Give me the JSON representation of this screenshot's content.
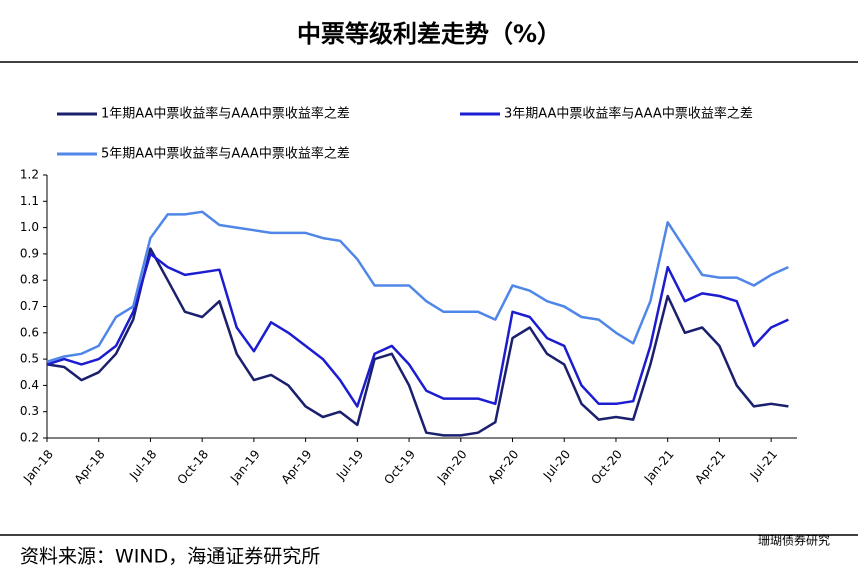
{
  "chart_data": {
    "type": "line",
    "title": "中票等级利差走势（%）",
    "source": "资料来源：WIND，海通证券研究所",
    "watermark": "珊瑚债券研究",
    "categories": [
      "Jan-18",
      null,
      null,
      "Apr-18",
      null,
      null,
      "Jul-18",
      null,
      null,
      "Oct-18",
      null,
      null,
      "Jan-19",
      null,
      null,
      "Apr-19",
      null,
      null,
      "Jul-19",
      null,
      null,
      "Oct-19",
      null,
      null,
      "Jan-20",
      null,
      null,
      "Apr-20",
      null,
      null,
      "Jul-20",
      null,
      null,
      "Oct-20",
      null,
      null,
      "Jan-21",
      null,
      null,
      "Apr-21",
      null,
      null,
      "Jul-21",
      null
    ],
    "series": [
      {
        "name": "1年期AA中票收益率与AAA中票收益率之差",
        "color": "#1a1f6e",
        "values": [
          0.48,
          0.47,
          0.42,
          0.45,
          0.52,
          0.65,
          0.92,
          0.8,
          0.68,
          0.66,
          0.72,
          0.52,
          0.42,
          0.44,
          0.4,
          0.32,
          0.28,
          0.3,
          0.25,
          0.5,
          0.52,
          0.4,
          0.22,
          0.21,
          0.21,
          0.22,
          0.26,
          0.58,
          0.62,
          0.52,
          0.48,
          0.33,
          0.27,
          0.28,
          0.27,
          0.48,
          0.74,
          0.6,
          0.62,
          0.55,
          0.4,
          0.32,
          0.33,
          0.32
        ]
      },
      {
        "name": "3年期AA中票收益率与AAA中票收益率之差",
        "color": "#1c1cd0",
        "values": [
          0.48,
          0.5,
          0.48,
          0.5,
          0.55,
          0.68,
          0.9,
          0.85,
          0.82,
          0.83,
          0.84,
          0.62,
          0.53,
          0.64,
          0.6,
          0.55,
          0.5,
          0.42,
          0.32,
          0.52,
          0.55,
          0.48,
          0.38,
          0.35,
          0.35,
          0.35,
          0.33,
          0.68,
          0.66,
          0.58,
          0.55,
          0.4,
          0.33,
          0.33,
          0.34,
          0.55,
          0.85,
          0.72,
          0.75,
          0.74,
          0.72,
          0.55,
          0.62,
          0.65
        ]
      },
      {
        "name": "5年期AA中票收益率与AAA中票收益率之差",
        "color": "#4f86e8",
        "values": [
          0.49,
          0.51,
          0.52,
          0.55,
          0.66,
          0.7,
          0.96,
          1.05,
          1.05,
          1.06,
          1.01,
          1.0,
          0.99,
          0.98,
          0.98,
          0.98,
          0.96,
          0.95,
          0.88,
          0.78,
          0.78,
          0.78,
          0.72,
          0.68,
          0.68,
          0.68,
          0.65,
          0.78,
          0.76,
          0.72,
          0.7,
          0.66,
          0.65,
          0.6,
          0.56,
          0.72,
          1.02,
          0.92,
          0.82,
          0.81,
          0.81,
          0.78,
          0.82,
          0.85
        ]
      }
    ],
    "ylim": [
      0.2,
      1.2
    ],
    "yticks": [
      0.2,
      0.3,
      0.4,
      0.5,
      0.6,
      0.7,
      0.8,
      0.9,
      {
        "value": 1,
        "label": "1.0"
      },
      1.1,
      1.2
    ],
    "grid": false
  }
}
